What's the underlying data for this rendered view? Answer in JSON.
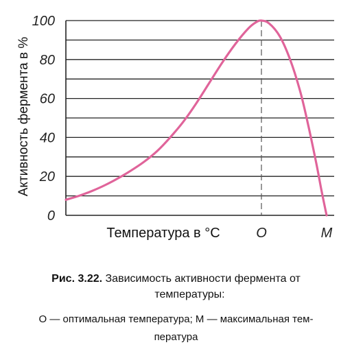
{
  "chart_data": {
    "type": "line",
    "ylabel": "Активность фермента в %",
    "xlabel": "Температура в °С",
    "y_ticks": [
      "0",
      "20",
      "40",
      "60",
      "80",
      "100"
    ],
    "ylim": [
      0,
      100
    ],
    "x_markers": [
      {
        "label": "О",
        "x": 0.75
      },
      {
        "label": "М",
        "x": 1.0
      }
    ],
    "grid": true,
    "colors": {
      "curve": "#e0649a",
      "grid": "#222222",
      "axis": "#222222",
      "marker": "#555555"
    },
    "series": [
      {
        "x": [
          0.0,
          0.05,
          0.1,
          0.15,
          0.2,
          0.25,
          0.3,
          0.35,
          0.4,
          0.45,
          0.5,
          0.55,
          0.6,
          0.65,
          0.7,
          0.73,
          0.75,
          0.78,
          0.82,
          0.86,
          0.9,
          0.93,
          0.96,
          0.98,
          1.0
        ],
        "values": [
          8,
          10,
          12.5,
          15.5,
          19,
          23,
          27.5,
          33,
          40,
          48,
          57.5,
          68,
          78.5,
          88,
          96,
          99.2,
          100,
          98.5,
          92,
          80,
          63,
          46,
          27,
          13,
          0
        ]
      }
    ]
  },
  "caption": {
    "fig_label": "Рис. 3.22.",
    "title_part1": "Зависимость активности фермента от",
    "title_part2": "температуры:",
    "note_line1": "О — оптимальная температура; М — максимальная тем-",
    "note_line2": "пература"
  }
}
